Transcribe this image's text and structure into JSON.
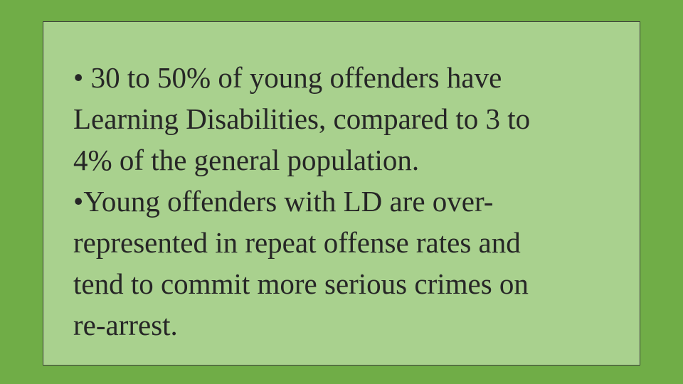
{
  "bullets": [
    {
      "lines": [
        "• 30 to 50% of young offenders have",
        "Learning Disabilities, compared to 3 to",
        "4% of the general population."
      ]
    },
    {
      "lines": [
        "•Young offenders with LD are over-",
        "represented in repeat offense rates and",
        "tend to commit more serious crimes on",
        "re-arrest."
      ]
    }
  ]
}
